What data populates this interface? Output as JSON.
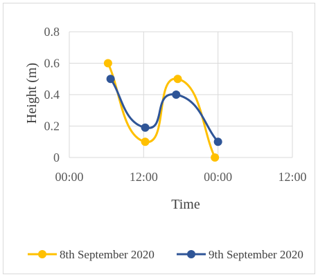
{
  "chart_data": {
    "type": "line",
    "smooth": true,
    "xlabel": "Time",
    "ylabel": "Height (m)",
    "x_ticks": [
      "00:00",
      "12:00",
      "00:00",
      "12:00"
    ],
    "y_ticks": [
      "0",
      "0.2",
      "0.4",
      "0.6",
      "0.8"
    ],
    "ylim": [
      0,
      0.8
    ],
    "xlim_hours": [
      0,
      36
    ],
    "grid": true,
    "legend_position": "bottom",
    "series": [
      {
        "name": "8th September 2020",
        "color": "#FFC000",
        "x": [
          "06:15",
          "12:15",
          "17:30",
          "23:30"
        ],
        "y": [
          0.6,
          0.1,
          0.5,
          0.0
        ]
      },
      {
        "name": "9th September 2020",
        "color": "#2F5597",
        "x": [
          "06:40",
          "12:15",
          "17:15",
          "24:00"
        ],
        "y": [
          0.5,
          0.19,
          0.4,
          0.1
        ]
      }
    ]
  }
}
